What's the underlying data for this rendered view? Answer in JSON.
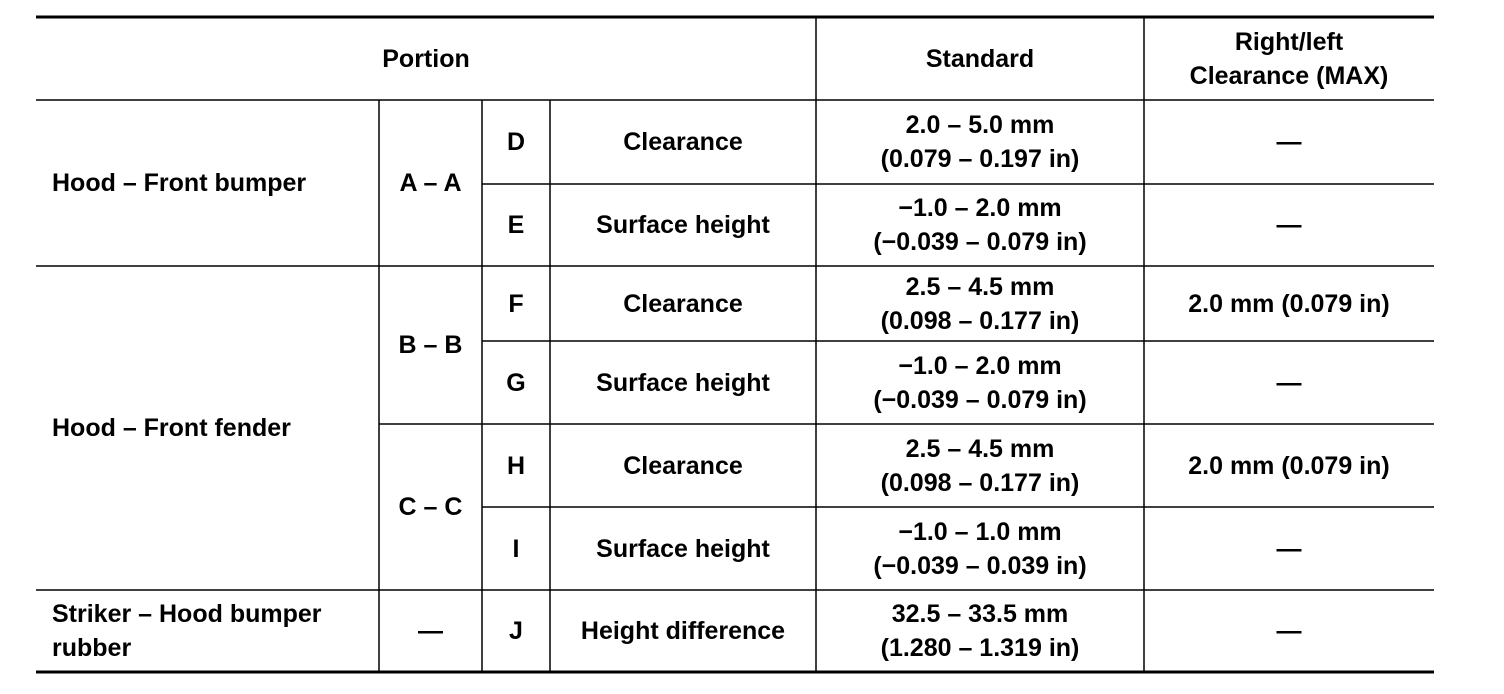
{
  "header": {
    "portion": "Portion",
    "standard": "Standard",
    "clearance": [
      "Right/left",
      "Clearance (MAX)"
    ]
  },
  "groups": [
    {
      "portion": "Hood – Front bumper",
      "sections": [
        {
          "section": "A – A",
          "rows": [
            {
              "letter": "D",
              "item": "Clearance",
              "standard": [
                "2.0 – 5.0 mm",
                "(0.079 – 0.197 in)"
              ],
              "clearance": "—"
            },
            {
              "letter": "E",
              "item": "Surface height",
              "standard": [
                "−1.0 – 2.0 mm",
                "(−0.039 – 0.079 in)"
              ],
              "clearance": "—"
            }
          ]
        }
      ]
    },
    {
      "portion": "Hood – Front fender",
      "sections": [
        {
          "section": "B – B",
          "rows": [
            {
              "letter": "F",
              "item": "Clearance",
              "standard": [
                "2.5 – 4.5 mm",
                "(0.098 – 0.177 in)"
              ],
              "clearance": "2.0 mm (0.079 in)"
            },
            {
              "letter": "G",
              "item": "Surface height",
              "standard": [
                "−1.0 – 2.0 mm",
                "(−0.039 – 0.079 in)"
              ],
              "clearance": "—"
            }
          ]
        },
        {
          "section": "C – C",
          "rows": [
            {
              "letter": "H",
              "item": "Clearance",
              "standard": [
                "2.5 – 4.5 mm",
                "(0.098 – 0.177 in)"
              ],
              "clearance": "2.0 mm (0.079 in)"
            },
            {
              "letter": "I",
              "item": "Surface height",
              "standard": [
                "−1.0 – 1.0 mm",
                "(−0.039 – 0.039 in)"
              ],
              "clearance": "—"
            }
          ]
        }
      ]
    },
    {
      "portion": "Striker – Hood bumper rubber",
      "sections": [
        {
          "section": "—",
          "rows": [
            {
              "letter": "J",
              "item": "Height difference",
              "standard": [
                "32.5 – 33.5 mm",
                "(1.280 – 1.319 in)"
              ],
              "clearance": "—"
            }
          ]
        }
      ]
    }
  ]
}
